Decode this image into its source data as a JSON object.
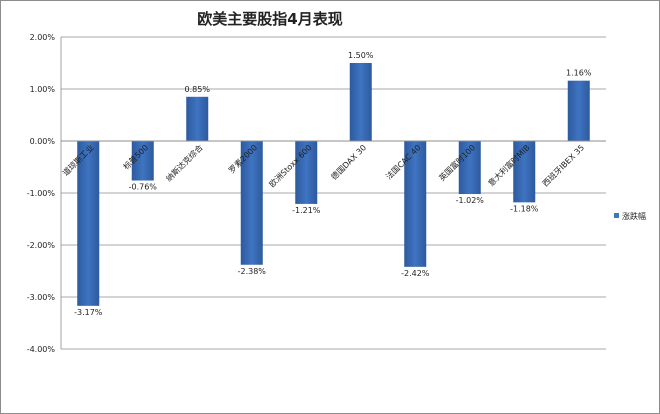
{
  "chart_data": {
    "type": "bar",
    "title": "欧美主要股指4月表现",
    "categories": [
      "道琼斯工业",
      "标普500",
      "纳斯达克综合",
      "罗素2000",
      "欧洲Stoxx 600",
      "德国DAX 30",
      "法国CAC 40",
      "英国富时100",
      "意大利富时MIB",
      "西班牙IBEX 35"
    ],
    "series": [
      {
        "name": "涨跌幅",
        "values": [
          -3.17,
          -0.76,
          0.85,
          -2.38,
          -1.21,
          1.5,
          -2.42,
          -1.02,
          -1.18,
          1.16
        ],
        "labels": [
          "-3.17%",
          "-0.76%",
          "0.85%",
          "-2.38%",
          "-1.21%",
          "1.50%",
          "-2.42%",
          "-1.02%",
          "-1.18%",
          "1.16%"
        ]
      }
    ],
    "ylim": [
      -4.0,
      2.0
    ],
    "yticks": [
      2.0,
      1.0,
      0.0,
      -1.0,
      -2.0,
      -3.0,
      -4.0
    ],
    "ytick_labels": [
      "2.00%",
      "1.00%",
      "0.00%",
      "-1.00%",
      "-2.00%",
      "-3.00%",
      "-4.00%"
    ],
    "gridlines": true,
    "legend": "right",
    "colors": {
      "bar": "#3f74c2",
      "bar_dark": "#2c5a9e",
      "grid": "#8c8c8c"
    }
  }
}
